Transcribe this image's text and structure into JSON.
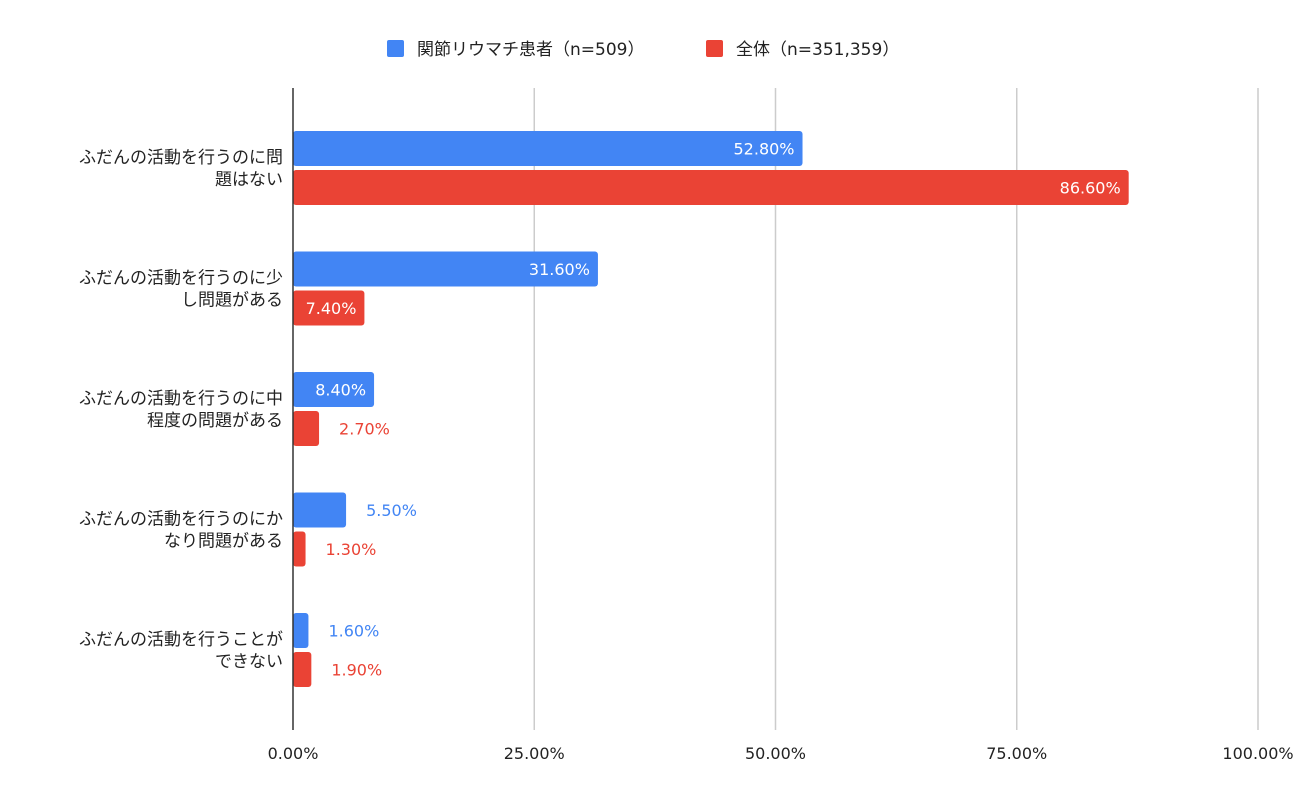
{
  "chart_data": {
    "type": "bar",
    "orientation": "horizontal",
    "categories": [
      [
        "ふだんの活動を行うのに問",
        "題はない"
      ],
      [
        "ふだんの活動を行うのに少",
        "し問題がある"
      ],
      [
        "ふだんの活動を行うのに中",
        "程度の問題がある"
      ],
      [
        "ふだんの活動を行うのにか",
        "なり問題がある"
      ],
      [
        "ふだんの活動を行うことが",
        "できない"
      ]
    ],
    "series": [
      {
        "name": "関節リウマチ患者（n=509）",
        "color": "#4285f4",
        "values": [
          52.8,
          31.6,
          8.4,
          5.5,
          1.6
        ],
        "labels": [
          "52.80%",
          "31.60%",
          "8.40%",
          "5.50%",
          "1.60%"
        ]
      },
      {
        "name": "全体（n=351,359）",
        "color": "#ea4335",
        "values": [
          86.6,
          7.4,
          2.7,
          1.3,
          1.9
        ],
        "labels": [
          "86.60%",
          "7.40%",
          "2.70%",
          "1.30%",
          "1.90%"
        ]
      }
    ],
    "xlim": [
      0,
      100
    ],
    "xticks": [
      0,
      25,
      50,
      75,
      100
    ],
    "xtick_labels": [
      "0.00%",
      "25.00%",
      "50.00%",
      "75.00%",
      "100.00%"
    ],
    "grid": true,
    "legend_position": "top-center"
  }
}
